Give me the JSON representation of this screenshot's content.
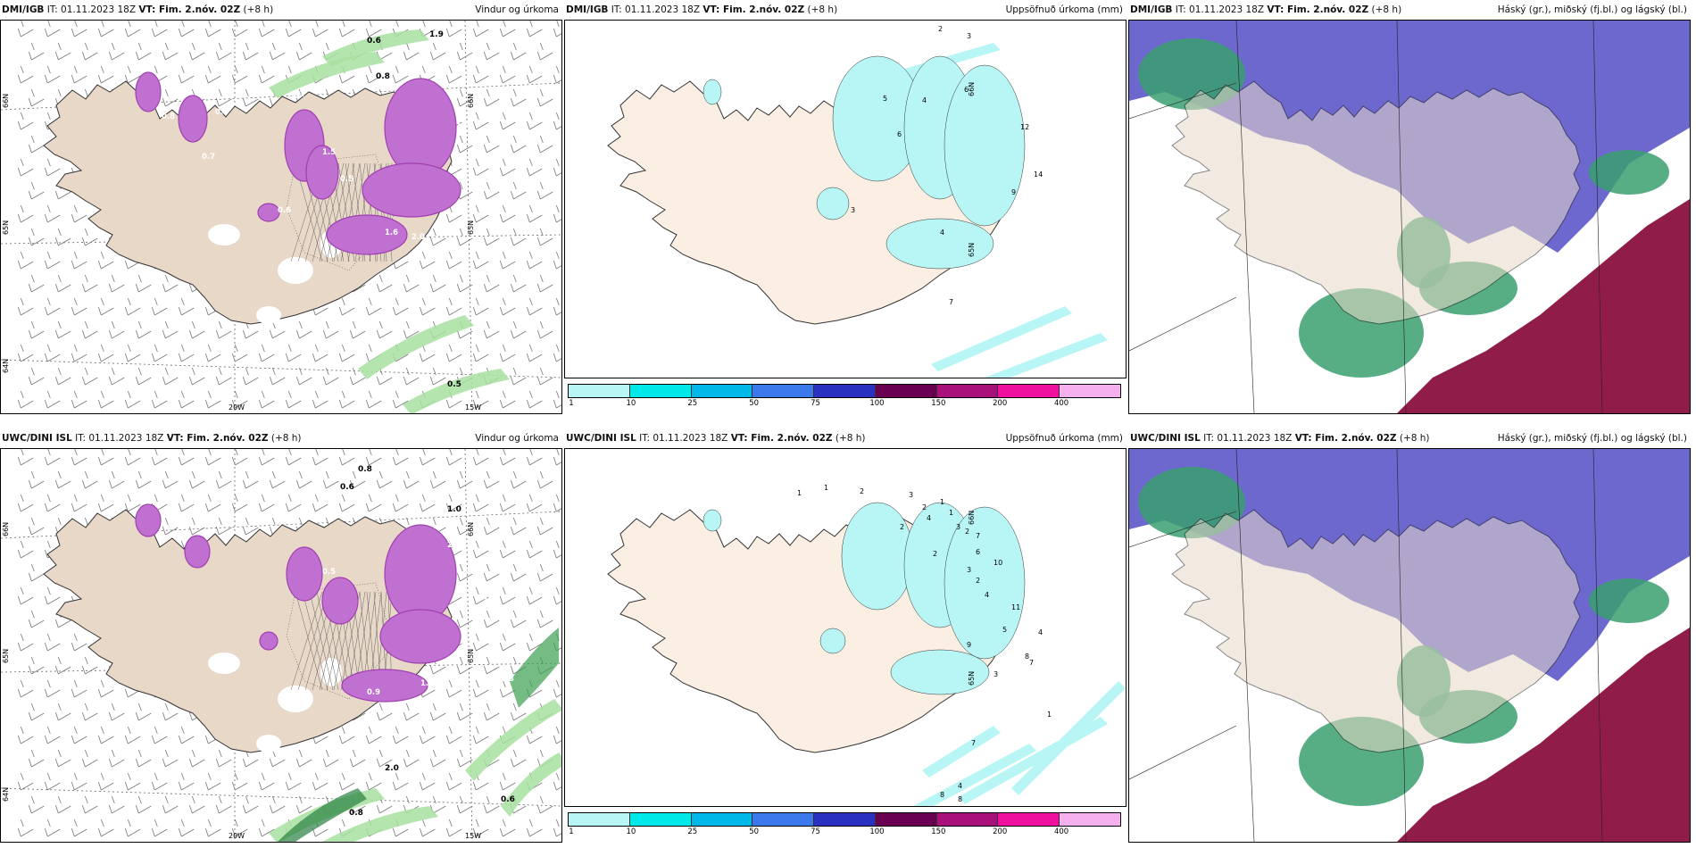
{
  "panels": [
    {
      "model": "DMI/IGB",
      "meta": "IT: 01.11.2023 18Z",
      "vt": "VT: Fim. 2.nóv. 02Z",
      "lead": "(+8 h)",
      "title": "Vindur og úrkoma",
      "kind": "wind",
      "labels": [
        "0.6",
        "1.9",
        "0.8",
        "1.1",
        "0.5",
        "0.8",
        "1.5",
        "0.5",
        "1.4",
        "1.6",
        "2.0",
        "1.0",
        "0.6",
        "0.7",
        "0.5"
      ],
      "lat": [
        "66N",
        "65N",
        "64N"
      ],
      "lon": [
        "20W",
        "15W"
      ]
    },
    {
      "model": "DMI/IGB",
      "meta": "IT: 01.11.2023 18Z",
      "vt": "VT: Fim. 2.nóv. 02Z",
      "lead": "(+8 h)",
      "title": "Uppsöfnuð úrkoma (mm)",
      "kind": "precip",
      "labels": [
        "2",
        "3",
        "5",
        "4",
        "6",
        "6",
        "12",
        "14",
        "9",
        "3",
        "4",
        "7"
      ],
      "lat": [
        "66N",
        "65N"
      ]
    },
    {
      "model": "DMI/IGB",
      "meta": "IT: 01.11.2023 18Z",
      "vt": "VT: Fim. 2.nóv. 02Z",
      "lead": "(+8 h)",
      "title": "Háský (gr.), miðský (fj.bl.) og lágský (bl.)",
      "kind": "cloud"
    },
    {
      "model": "UWC/DINI ISL",
      "meta": "IT: 01.11.2023 18Z",
      "vt": "VT: Fim. 2.nóv. 02Z",
      "lead": "(+8 h)",
      "title": "Vindur og úrkoma",
      "kind": "wind",
      "labels": [
        "0.8",
        "0.6",
        "1.0",
        "0.8",
        "0.5",
        "1.3",
        "0.7",
        "1.4",
        "2.0",
        "1.6",
        "0.9",
        "1.7",
        "0.8",
        "0.6",
        "2.0"
      ],
      "lat": [
        "66N",
        "65N",
        "64N"
      ],
      "lon": [
        "20W",
        "15W"
      ]
    },
    {
      "model": "UWC/DINI ISL",
      "meta": "IT: 01.11.2023 18Z",
      "vt": "VT: Fim. 2.nóv. 02Z",
      "lead": "(+8 h)",
      "title": "Uppsöfnuð úrkoma (mm)",
      "kind": "precip",
      "labels": [
        "1",
        "1",
        "2",
        "3",
        "2",
        "1",
        "4",
        "2",
        "1",
        "3",
        "2",
        "7",
        "6",
        "10",
        "2",
        "3",
        "2",
        "4",
        "11",
        "5",
        "9",
        "4",
        "8",
        "7",
        "3",
        "1",
        "7",
        "4",
        "8",
        "8"
      ],
      "lat": [
        "66N",
        "65N"
      ]
    },
    {
      "model": "UWC/DINI ISL",
      "meta": "IT: 01.11.2023 18Z",
      "vt": "VT: Fim. 2.nóv. 02Z",
      "lead": "(+8 h)",
      "title": "Háský (gr.), miðský (fj.bl.) og lágský (bl.)",
      "kind": "cloud"
    }
  ],
  "colorbar": {
    "colors": [
      "#b8f6f6",
      "#00e8e8",
      "#00b8e8",
      "#3a78ec",
      "#2a30c0",
      "#6a0050",
      "#a8107a",
      "#f010a0",
      "#f6b0f0"
    ],
    "ticks": [
      "1",
      "10",
      "25",
      "50",
      "75",
      "100",
      "150",
      "200",
      "400"
    ]
  },
  "colors": {
    "land": "#e8d8c8",
    "land_precip": "#faefe2",
    "rain": "#c070d0",
    "rain_dark": "#a040b0",
    "snow": "#ffffff",
    "green": "#a8e0a0",
    "high": "#5c58c8",
    "mid": "#3aa070",
    "low": "#8a1040"
  }
}
